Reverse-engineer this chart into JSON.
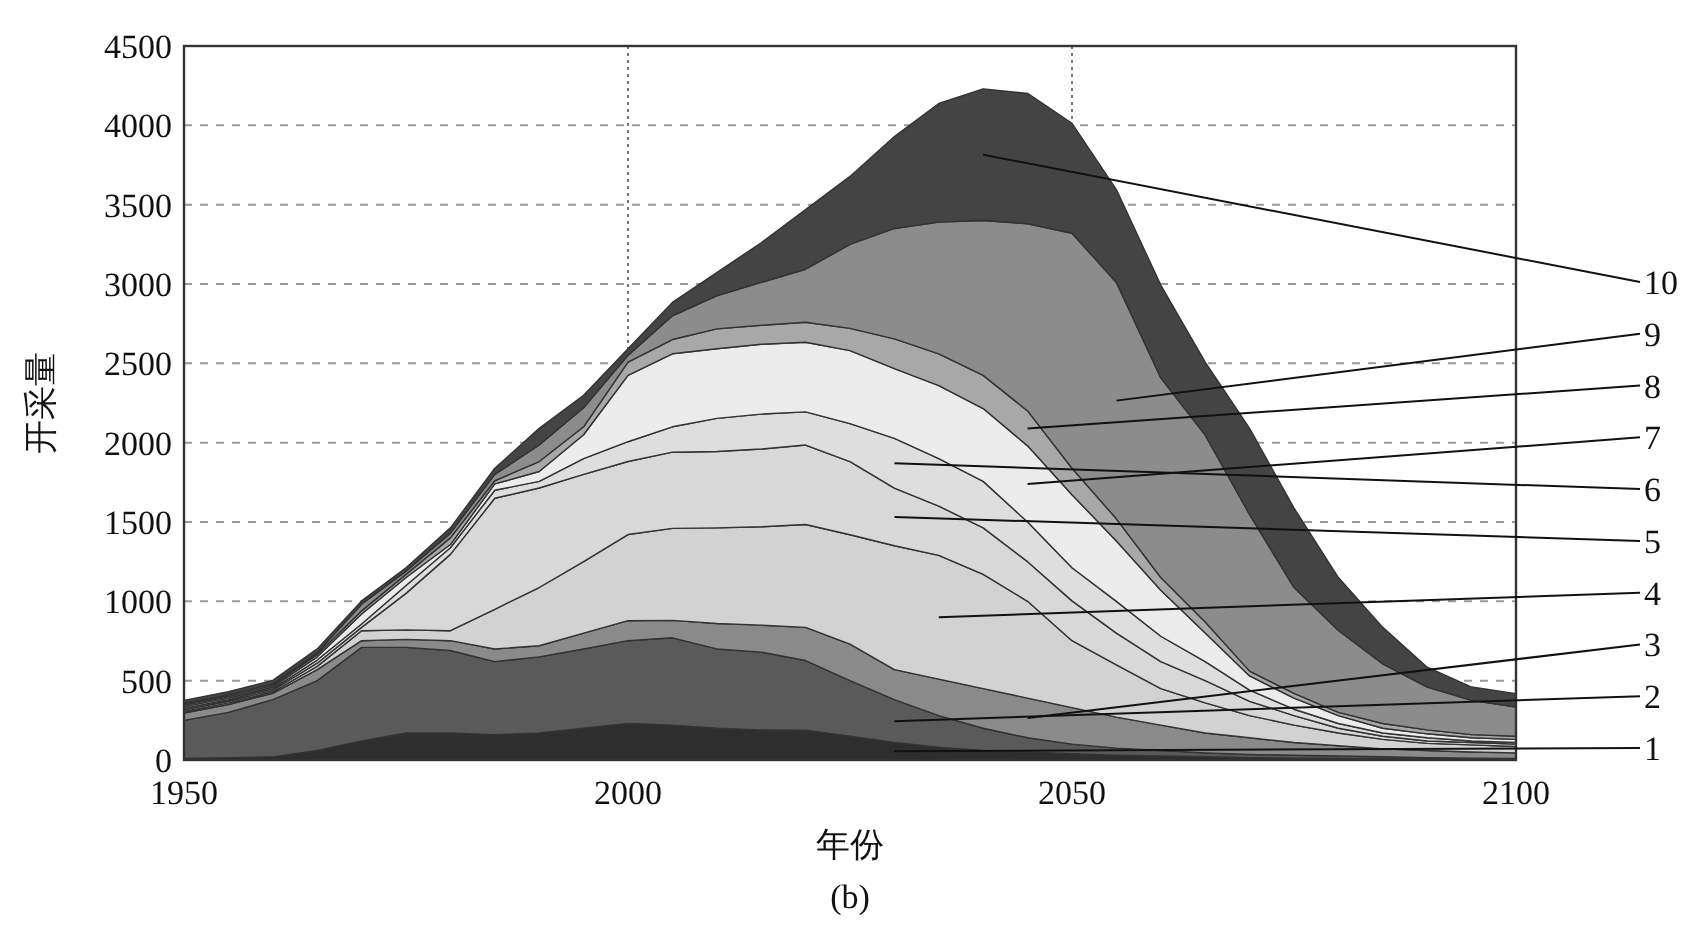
{
  "chart_data": {
    "type": "area",
    "stacked": true,
    "xlabel": "年份",
    "ylabel": "开采量",
    "annotations": [
      "(b)"
    ],
    "x": [
      1950,
      1955,
      1960,
      1965,
      1970,
      1975,
      1980,
      1985,
      1990,
      1995,
      2000,
      2005,
      2010,
      2015,
      2020,
      2025,
      2030,
      2035,
      2040,
      2045,
      2050,
      2055,
      2060,
      2065,
      2070,
      2075,
      2080,
      2085,
      2090,
      2095,
      2100
    ],
    "xlim": [
      1950,
      2100
    ],
    "xticks": [
      1950,
      2000,
      2050,
      2100
    ],
    "ylim": [
      0,
      4500
    ],
    "yticks": [
      0,
      500,
      1000,
      1500,
      2000,
      2500,
      3000,
      3500,
      4000,
      4500
    ],
    "grid": true,
    "series": [
      {
        "name": "1",
        "color": "#2e2e2e",
        "values": [
          10,
          15,
          20,
          60,
          120,
          170,
          170,
          160,
          170,
          200,
          230,
          220,
          200,
          190,
          188,
          150,
          110,
          80,
          60,
          50,
          40,
          30,
          25,
          20,
          15,
          12,
          10,
          8,
          6,
          5,
          4
        ]
      },
      {
        "name": "2",
        "color": "#5a5a5a",
        "values": [
          240,
          285,
          360,
          440,
          590,
          540,
          520,
          460,
          480,
          500,
          522,
          550,
          500,
          490,
          439,
          350,
          270,
          200,
          140,
          90,
          60,
          45,
          35,
          25,
          20,
          18,
          15,
          12,
          9,
          7,
          6
        ]
      },
      {
        "name": "3",
        "color": "#8a8a8a",
        "values": [
          46,
          50,
          40,
          70,
          42,
          50,
          62,
          80,
          70,
          100,
          126,
          110,
          160,
          170,
          209,
          230,
          190,
          230,
          250,
          250,
          230,
          195,
          160,
          125,
          105,
          80,
          65,
          50,
          45,
          38,
          35
        ]
      },
      {
        "name": "4",
        "color": "#d2d2d2",
        "values": [
          10,
          10,
          10,
          20,
          63,
          60,
          63,
          250,
          367,
          450,
          543,
          580,
          603,
          620,
          648,
          690,
          780,
          780,
          720,
          610,
          422,
          330,
          230,
          190,
          140,
          110,
          80,
          60,
          45,
          45,
          40
        ]
      },
      {
        "name": "5",
        "color": "#d8d8d8",
        "values": [
          10,
          10,
          10,
          20,
          21,
          230,
          481,
          700,
          627,
          550,
          460,
          480,
          481,
          490,
          501,
          460,
          364,
          310,
          293,
          250,
          251,
          200,
          170,
          140,
          90,
          60,
          30,
          20,
          15,
          15,
          15
        ]
      },
      {
        "name": "6",
        "color": "#dedede",
        "values": [
          10,
          10,
          10,
          20,
          21,
          50,
          42,
          50,
          42,
          100,
          125,
          160,
          209,
          220,
          209,
          240,
          313,
          300,
          293,
          250,
          209,
          200,
          160,
          120,
          70,
          40,
          30,
          20,
          20,
          10,
          10
        ]
      },
      {
        "name": "7",
        "color": "#ececec",
        "values": [
          10,
          10,
          10,
          20,
          63,
          50,
          20,
          40,
          62,
          150,
          418,
          460,
          439,
          440,
          439,
          460,
          439,
          460,
          459,
          480,
          460,
          380,
          290,
          180,
          90,
          70,
          50,
          30,
          25,
          20,
          20
        ]
      },
      {
        "name": "8",
        "color": "#a8a8a8",
        "values": [
          10,
          10,
          10,
          15,
          20,
          20,
          42,
          20,
          63,
          50,
          84,
          90,
          125,
          120,
          126,
          140,
          188,
          200,
          209,
          220,
          167,
          140,
          80,
          70,
          30,
          30,
          20,
          30,
          25,
          20,
          20
        ]
      },
      {
        "name": "9",
        "color": "#8c8c8c",
        "values": [
          10,
          10,
          10,
          10,
          42,
          20,
          30,
          40,
          104,
          120,
          42,
          150,
          209,
          270,
          334,
          530,
          696,
          830,
          976,
          1180,
          1481,
          1490,
          1258,
          1178,
          987,
          667,
          516,
          376,
          270,
          216,
          184
        ]
      },
      {
        "name": "10",
        "color": "#444444",
        "values": [
          20,
          20,
          22,
          25,
          21,
          22,
          33,
          39,
          105,
          79,
          42,
          84,
          146,
          250,
          376,
          428,
          579,
          748,
          830,
          821,
          693,
          585,
          585,
          460,
          543,
          501,
          334,
          230,
          125,
          84,
          84
        ]
      }
    ]
  }
}
